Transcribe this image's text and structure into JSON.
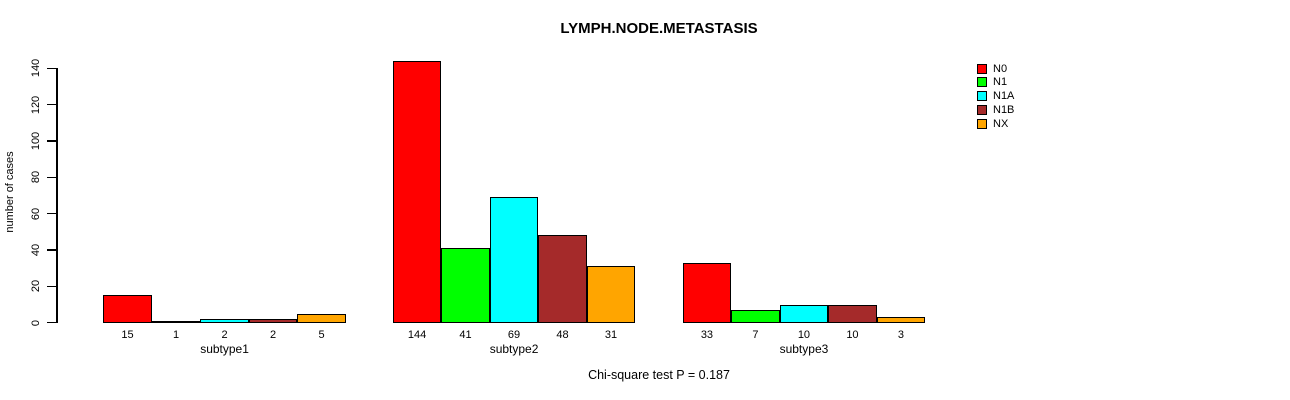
{
  "chart_data": {
    "type": "bar",
    "title": "LYMPH.NODE.METASTASIS",
    "xlabel": "",
    "ylabel": "number of cases",
    "annotation": "Chi-square test P = 0.187",
    "categories": [
      "subtype1",
      "subtype2",
      "subtype3"
    ],
    "series": [
      {
        "name": "N0",
        "color": "#FF0000",
        "values": [
          15,
          144,
          33
        ]
      },
      {
        "name": "N1",
        "color": "#00FF00",
        "values": [
          1,
          41,
          7
        ]
      },
      {
        "name": "N1A",
        "color": "#00FFFF",
        "values": [
          2,
          69,
          10
        ]
      },
      {
        "name": "N1B",
        "color": "#A52A2A",
        "values": [
          2,
          48,
          10
        ]
      },
      {
        "name": "NX",
        "color": "#FFA500",
        "values": [
          5,
          31,
          3
        ]
      }
    ],
    "bar_value_labels": [
      [
        "15",
        "1",
        "2",
        "2",
        "5"
      ],
      [
        "144",
        "41",
        "69",
        "48",
        "31"
      ],
      [
        "33",
        "7",
        "10",
        "10",
        "3"
      ]
    ],
    "yticks": [
      "0",
      "20",
      "40",
      "60",
      "80",
      "100",
      "120",
      "140"
    ],
    "ylim": [
      0,
      140
    ],
    "grid": false,
    "legend": {
      "position": "right",
      "entries": [
        "N0",
        "N1",
        "N1A",
        "N1B",
        "NX"
      ]
    },
    "axis_color": "#000000",
    "bar_border_color": "#000000"
  }
}
